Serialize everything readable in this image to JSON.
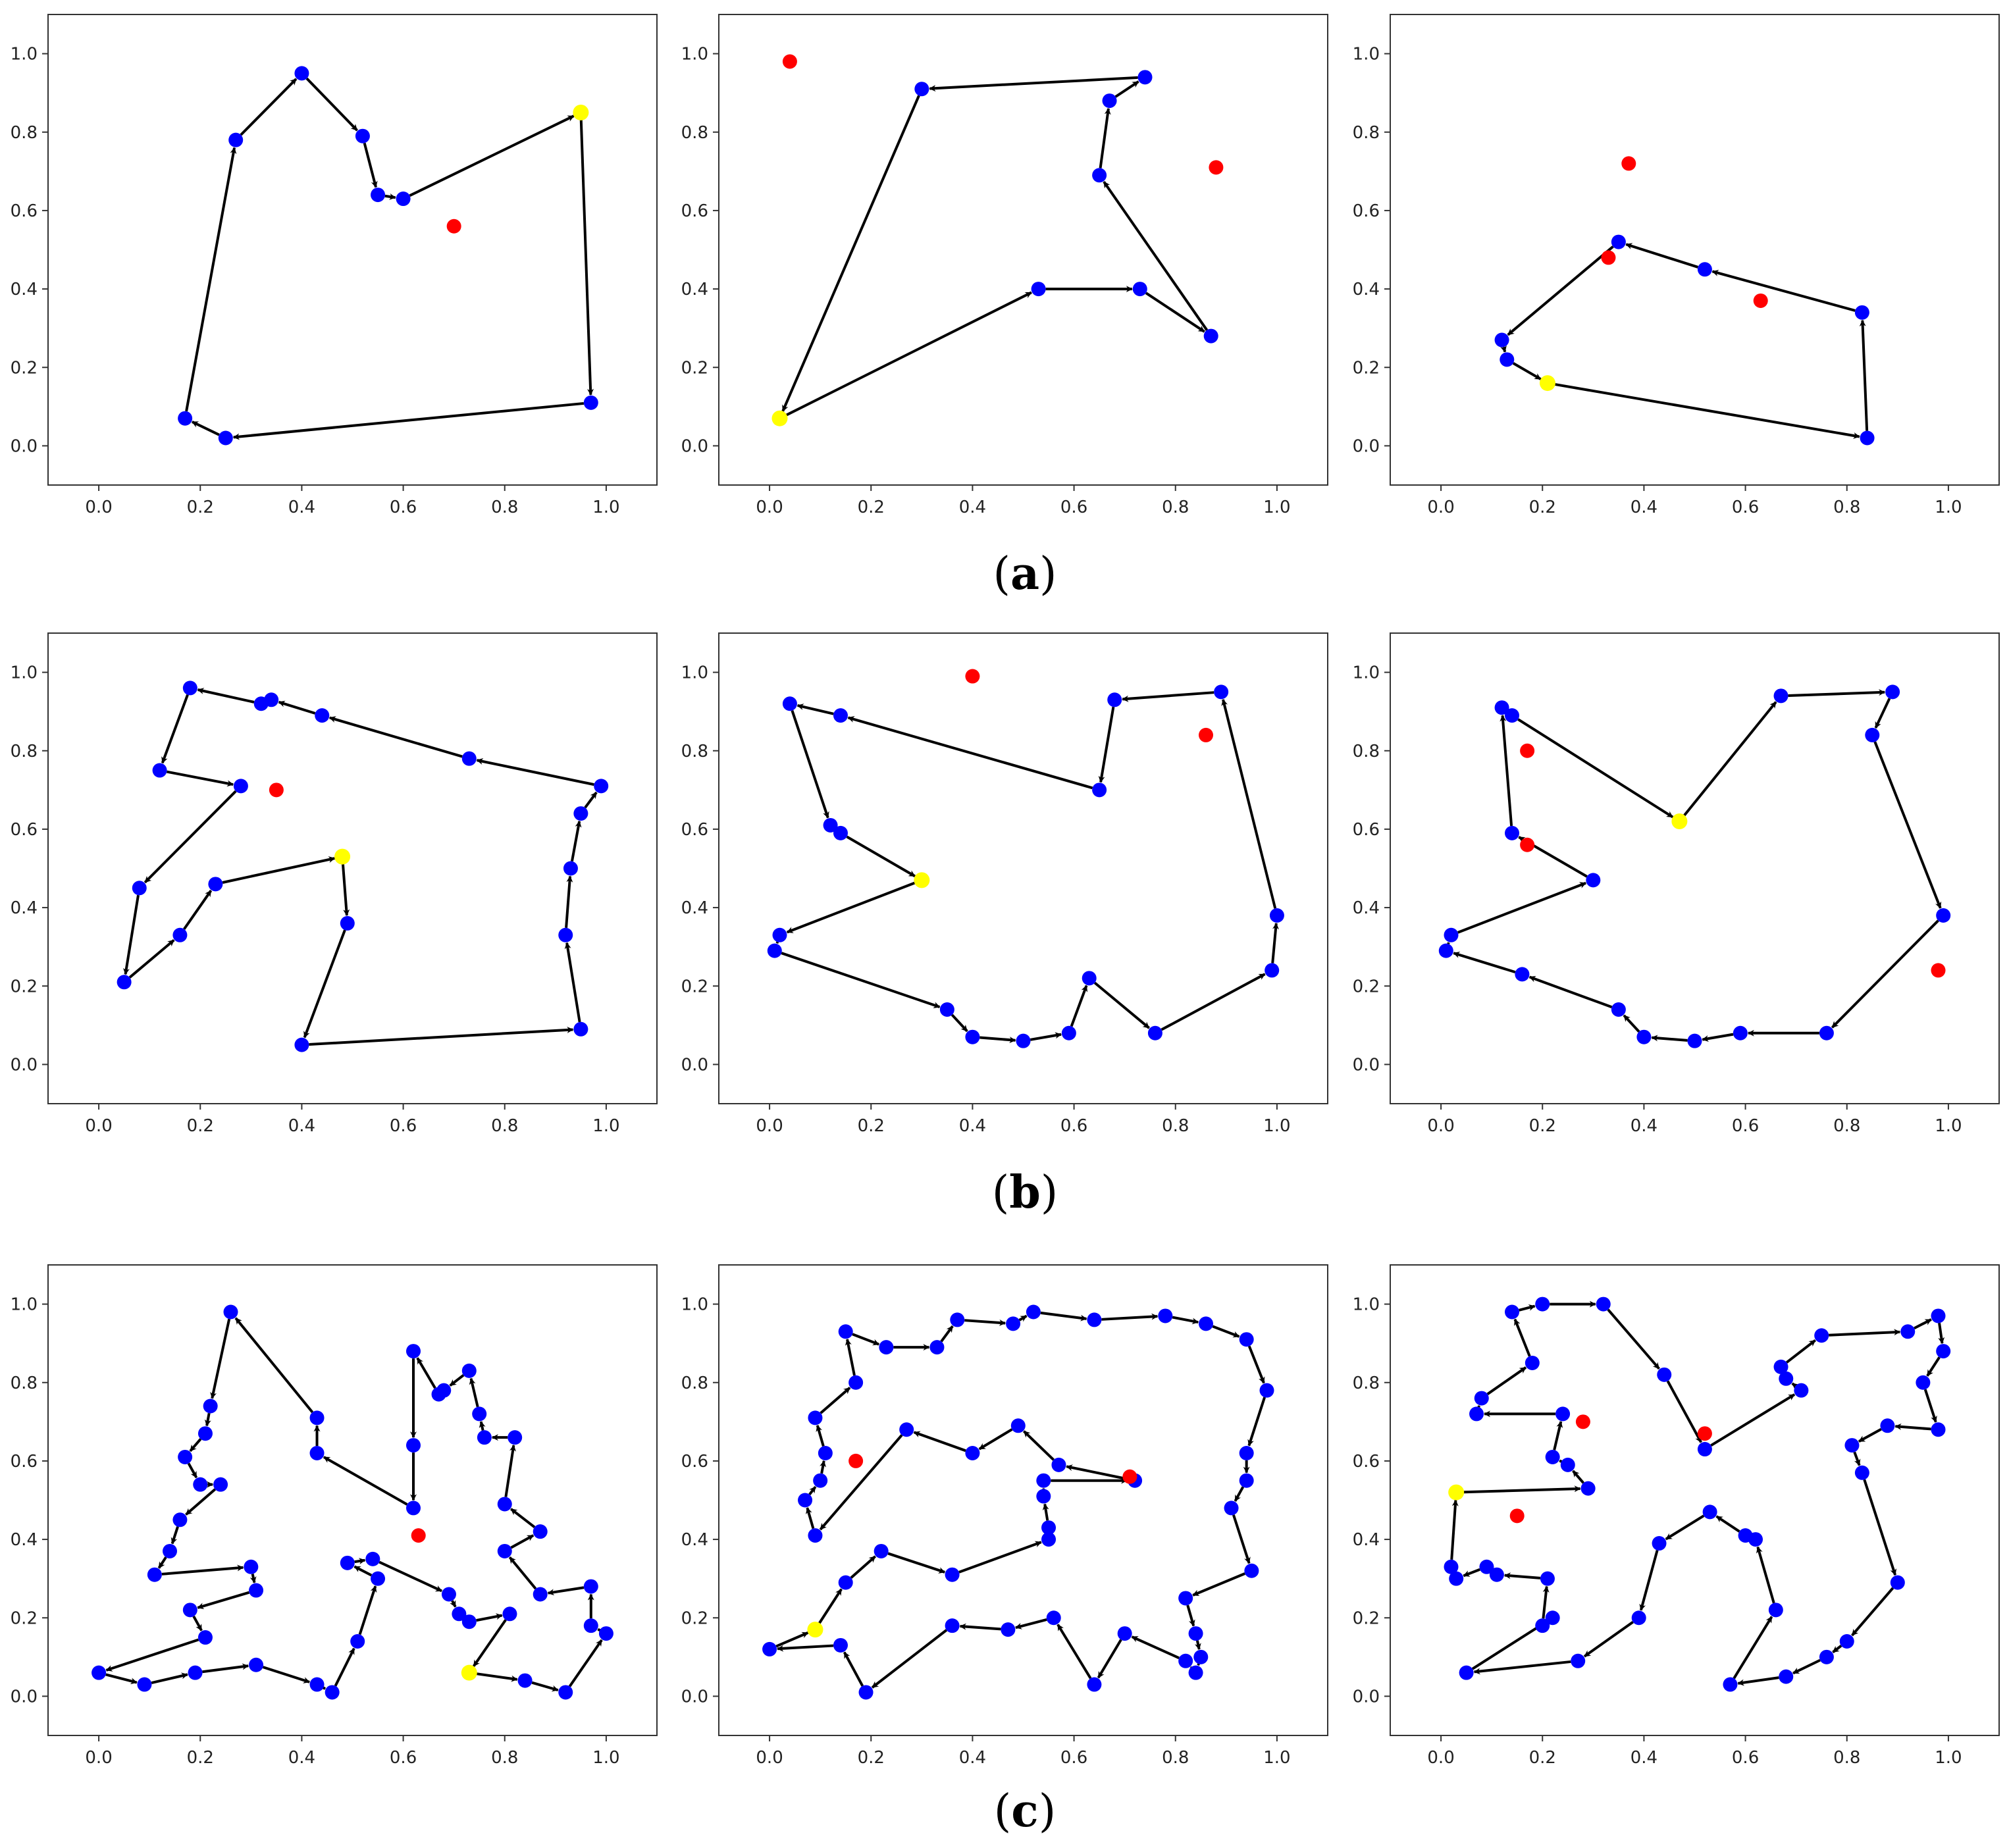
{
  "figure": {
    "row_labels": [
      "a",
      "b",
      "c"
    ]
  },
  "style": {
    "node_color": "#0000ff",
    "start_color": "#ffff00",
    "outlier_color": "#ff0000",
    "edge_color": "#000000",
    "frame_color": "#333333"
  },
  "chart_data": [
    {
      "type": "scatter",
      "row": "a",
      "col": 0,
      "xlim": [
        -0.1,
        1.1
      ],
      "ylim": [
        -0.1,
        1.1
      ],
      "xticks": [
        "0.0",
        "0.2",
        "0.4",
        "0.6",
        "0.8",
        "1.0"
      ],
      "yticks": [
        "0.0",
        "0.2",
        "0.4",
        "0.6",
        "0.8",
        "1.0"
      ],
      "tour": [
        [
          0.95,
          0.85
        ],
        [
          0.97,
          0.11
        ],
        [
          0.25,
          0.02
        ],
        [
          0.17,
          0.07
        ],
        [
          0.27,
          0.78
        ],
        [
          0.4,
          0.95
        ],
        [
          0.52,
          0.79
        ],
        [
          0.55,
          0.64
        ],
        [
          0.6,
          0.63
        ]
      ],
      "start": [
        0.95,
        0.85
      ],
      "outliers": [
        [
          0.7,
          0.56
        ]
      ]
    },
    {
      "type": "scatter",
      "row": "a",
      "col": 1,
      "xlim": [
        -0.1,
        1.1
      ],
      "ylim": [
        -0.1,
        1.1
      ],
      "xticks": [
        "0.0",
        "0.2",
        "0.4",
        "0.6",
        "0.8",
        "1.0"
      ],
      "yticks": [
        "0.0",
        "0.2",
        "0.4",
        "0.6",
        "0.8",
        "1.0"
      ],
      "tour": [
        [
          0.02,
          0.07
        ],
        [
          0.53,
          0.4
        ],
        [
          0.73,
          0.4
        ],
        [
          0.87,
          0.28
        ],
        [
          0.65,
          0.69
        ],
        [
          0.67,
          0.88
        ],
        [
          0.74,
          0.94
        ],
        [
          0.3,
          0.91
        ]
      ],
      "start": [
        0.02,
        0.07
      ],
      "outliers": [
        [
          0.04,
          0.98
        ],
        [
          0.88,
          0.71
        ]
      ]
    },
    {
      "type": "scatter",
      "row": "a",
      "col": 2,
      "xlim": [
        -0.1,
        1.1
      ],
      "ylim": [
        -0.1,
        1.1
      ],
      "xticks": [
        "0.0",
        "0.2",
        "0.4",
        "0.6",
        "0.8",
        "1.0"
      ],
      "yticks": [
        "0.0",
        "0.2",
        "0.4",
        "0.6",
        "0.8",
        "1.0"
      ],
      "tour": [
        [
          0.21,
          0.16
        ],
        [
          0.84,
          0.02
        ],
        [
          0.83,
          0.34
        ],
        [
          0.52,
          0.45
        ],
        [
          0.35,
          0.52
        ],
        [
          0.12,
          0.27
        ],
        [
          0.13,
          0.22
        ]
      ],
      "start": [
        0.21,
        0.16
      ],
      "outliers": [
        [
          0.37,
          0.72
        ],
        [
          0.33,
          0.48
        ],
        [
          0.63,
          0.37
        ]
      ]
    },
    {
      "type": "scatter",
      "row": "b",
      "col": 0,
      "xlim": [
        -0.1,
        1.1
      ],
      "ylim": [
        -0.1,
        1.1
      ],
      "xticks": [
        "0.0",
        "0.2",
        "0.4",
        "0.6",
        "0.8",
        "1.0"
      ],
      "yticks": [
        "0.0",
        "0.2",
        "0.4",
        "0.6",
        "0.8",
        "1.0"
      ],
      "tour": [
        [
          0.48,
          0.53
        ],
        [
          0.49,
          0.36
        ],
        [
          0.4,
          0.05
        ],
        [
          0.95,
          0.09
        ],
        [
          0.92,
          0.33
        ],
        [
          0.93,
          0.5
        ],
        [
          0.95,
          0.64
        ],
        [
          0.99,
          0.71
        ],
        [
          0.73,
          0.78
        ],
        [
          0.44,
          0.89
        ],
        [
          0.34,
          0.93
        ],
        [
          0.32,
          0.92
        ],
        [
          0.18,
          0.96
        ],
        [
          0.12,
          0.75
        ],
        [
          0.28,
          0.71
        ],
        [
          0.08,
          0.45
        ],
        [
          0.05,
          0.21
        ],
        [
          0.16,
          0.33
        ],
        [
          0.23,
          0.46
        ]
      ],
      "start": [
        0.48,
        0.53
      ],
      "outliers": [
        [
          0.35,
          0.7
        ]
      ]
    },
    {
      "type": "scatter",
      "row": "b",
      "col": 1,
      "xlim": [
        -0.1,
        1.1
      ],
      "ylim": [
        -0.1,
        1.1
      ],
      "xticks": [
        "0.0",
        "0.2",
        "0.4",
        "0.6",
        "0.8",
        "1.0"
      ],
      "yticks": [
        "0.0",
        "0.2",
        "0.4",
        "0.6",
        "0.8",
        "1.0"
      ],
      "tour": [
        [
          0.3,
          0.47
        ],
        [
          0.02,
          0.33
        ],
        [
          0.01,
          0.29
        ],
        [
          0.35,
          0.14
        ],
        [
          0.4,
          0.07
        ],
        [
          0.5,
          0.06
        ],
        [
          0.59,
          0.08
        ],
        [
          0.63,
          0.22
        ],
        [
          0.76,
          0.08
        ],
        [
          0.99,
          0.24
        ],
        [
          1.0,
          0.38
        ],
        [
          0.89,
          0.95
        ],
        [
          0.68,
          0.93
        ],
        [
          0.65,
          0.7
        ],
        [
          0.14,
          0.89
        ],
        [
          0.04,
          0.92
        ],
        [
          0.12,
          0.61
        ],
        [
          0.14,
          0.59
        ]
      ],
      "start": [
        0.3,
        0.47
      ],
      "outliers": [
        [
          0.4,
          0.99
        ],
        [
          0.86,
          0.84
        ]
      ]
    },
    {
      "type": "scatter",
      "row": "b",
      "col": 2,
      "xlim": [
        -0.1,
        1.1
      ],
      "ylim": [
        -0.1,
        1.1
      ],
      "xticks": [
        "0.0",
        "0.2",
        "0.4",
        "0.6",
        "0.8",
        "1.0"
      ],
      "yticks": [
        "0.0",
        "0.2",
        "0.4",
        "0.6",
        "0.8",
        "1.0"
      ],
      "tour": [
        [
          0.47,
          0.62
        ],
        [
          0.67,
          0.94
        ],
        [
          0.89,
          0.95
        ],
        [
          0.85,
          0.84
        ],
        [
          0.99,
          0.38
        ],
        [
          0.76,
          0.08
        ],
        [
          0.59,
          0.08
        ],
        [
          0.5,
          0.06
        ],
        [
          0.4,
          0.07
        ],
        [
          0.35,
          0.14
        ],
        [
          0.16,
          0.23
        ],
        [
          0.01,
          0.29
        ],
        [
          0.02,
          0.33
        ],
        [
          0.3,
          0.47
        ],
        [
          0.14,
          0.59
        ],
        [
          0.12,
          0.91
        ],
        [
          0.14,
          0.89
        ]
      ],
      "start": [
        0.47,
        0.62
      ],
      "outliers": [
        [
          0.17,
          0.8
        ],
        [
          0.17,
          0.56
        ],
        [
          0.98,
          0.24
        ]
      ]
    },
    {
      "type": "scatter",
      "row": "c",
      "col": 0,
      "xlim": [
        -0.1,
        1.1
      ],
      "ylim": [
        -0.1,
        1.1
      ],
      "xticks": [
        "0.0",
        "0.2",
        "0.4",
        "0.6",
        "0.8",
        "1.0"
      ],
      "yticks": [
        "0.0",
        "0.2",
        "0.4",
        "0.6",
        "0.8",
        "1.0"
      ],
      "tour": [
        [
          0.73,
          0.06
        ],
        [
          0.84,
          0.04
        ],
        [
          0.92,
          0.01
        ],
        [
          1.0,
          0.16
        ],
        [
          0.97,
          0.18
        ],
        [
          0.97,
          0.28
        ],
        [
          0.87,
          0.26
        ],
        [
          0.8,
          0.37
        ],
        [
          0.87,
          0.42
        ],
        [
          0.8,
          0.49
        ],
        [
          0.82,
          0.66
        ],
        [
          0.76,
          0.66
        ],
        [
          0.75,
          0.72
        ],
        [
          0.73,
          0.83
        ],
        [
          0.68,
          0.78
        ],
        [
          0.67,
          0.77
        ],
        [
          0.62,
          0.88
        ],
        [
          0.62,
          0.64
        ],
        [
          0.62,
          0.48
        ],
        [
          0.43,
          0.62
        ],
        [
          0.43,
          0.71
        ],
        [
          0.26,
          0.98
        ],
        [
          0.22,
          0.74
        ],
        [
          0.21,
          0.67
        ],
        [
          0.17,
          0.61
        ],
        [
          0.2,
          0.54
        ],
        [
          0.24,
          0.54
        ],
        [
          0.16,
          0.45
        ],
        [
          0.14,
          0.37
        ],
        [
          0.11,
          0.31
        ],
        [
          0.3,
          0.33
        ],
        [
          0.31,
          0.27
        ],
        [
          0.18,
          0.22
        ],
        [
          0.21,
          0.15
        ],
        [
          0.0,
          0.06
        ],
        [
          0.09,
          0.03
        ],
        [
          0.19,
          0.06
        ],
        [
          0.31,
          0.08
        ],
        [
          0.43,
          0.03
        ],
        [
          0.46,
          0.01
        ],
        [
          0.51,
          0.14
        ],
        [
          0.55,
          0.3
        ],
        [
          0.49,
          0.34
        ],
        [
          0.54,
          0.35
        ],
        [
          0.69,
          0.26
        ],
        [
          0.71,
          0.21
        ],
        [
          0.73,
          0.19
        ],
        [
          0.81,
          0.21
        ]
      ],
      "start": [
        0.73,
        0.06
      ],
      "outliers": [
        [
          0.63,
          0.41
        ]
      ]
    },
    {
      "type": "scatter",
      "row": "c",
      "col": 1,
      "xlim": [
        -0.1,
        1.1
      ],
      "ylim": [
        -0.1,
        1.1
      ],
      "xticks": [
        "0.0",
        "0.2",
        "0.4",
        "0.6",
        "0.8",
        "1.0"
      ],
      "yticks": [
        "0.0",
        "0.2",
        "0.4",
        "0.6",
        "0.8",
        "1.0"
      ],
      "tour": [
        [
          0.09,
          0.17
        ],
        [
          0.15,
          0.29
        ],
        [
          0.22,
          0.37
        ],
        [
          0.36,
          0.31
        ],
        [
          0.55,
          0.4
        ],
        [
          0.55,
          0.43
        ],
        [
          0.54,
          0.51
        ],
        [
          0.54,
          0.55
        ],
        [
          0.72,
          0.55
        ],
        [
          0.57,
          0.59
        ],
        [
          0.49,
          0.69
        ],
        [
          0.4,
          0.62
        ],
        [
          0.27,
          0.68
        ],
        [
          0.09,
          0.41
        ],
        [
          0.07,
          0.5
        ],
        [
          0.1,
          0.55
        ],
        [
          0.11,
          0.62
        ],
        [
          0.09,
          0.71
        ],
        [
          0.17,
          0.8
        ],
        [
          0.15,
          0.93
        ],
        [
          0.23,
          0.89
        ],
        [
          0.33,
          0.89
        ],
        [
          0.37,
          0.96
        ],
        [
          0.48,
          0.95
        ],
        [
          0.52,
          0.98
        ],
        [
          0.64,
          0.96
        ],
        [
          0.78,
          0.97
        ],
        [
          0.86,
          0.95
        ],
        [
          0.94,
          0.91
        ],
        [
          0.98,
          0.78
        ],
        [
          0.94,
          0.62
        ],
        [
          0.94,
          0.55
        ],
        [
          0.91,
          0.48
        ],
        [
          0.95,
          0.32
        ],
        [
          0.82,
          0.25
        ],
        [
          0.84,
          0.16
        ],
        [
          0.85,
          0.1
        ],
        [
          0.84,
          0.06
        ],
        [
          0.82,
          0.09
        ],
        [
          0.7,
          0.16
        ],
        [
          0.64,
          0.03
        ],
        [
          0.56,
          0.2
        ],
        [
          0.47,
          0.17
        ],
        [
          0.36,
          0.18
        ],
        [
          0.19,
          0.01
        ],
        [
          0.14,
          0.13
        ],
        [
          0.0,
          0.12
        ]
      ],
      "start": [
        0.09,
        0.17
      ],
      "outliers": [
        [
          0.17,
          0.6
        ],
        [
          0.71,
          0.56
        ]
      ]
    },
    {
      "type": "scatter",
      "row": "c",
      "col": 2,
      "xlim": [
        -0.1,
        1.1
      ],
      "ylim": [
        -0.1,
        1.1
      ],
      "xticks": [
        "0.0",
        "0.2",
        "0.4",
        "0.6",
        "0.8",
        "1.0"
      ],
      "yticks": [
        "0.0",
        "0.2",
        "0.4",
        "0.6",
        "0.8",
        "1.0"
      ],
      "tour": [
        [
          0.03,
          0.52
        ],
        [
          0.29,
          0.53
        ],
        [
          0.25,
          0.59
        ],
        [
          0.22,
          0.61
        ],
        [
          0.24,
          0.72
        ],
        [
          0.07,
          0.72
        ],
        [
          0.08,
          0.76
        ],
        [
          0.18,
          0.85
        ],
        [
          0.14,
          0.98
        ],
        [
          0.2,
          1.0
        ],
        [
          0.32,
          1.0
        ],
        [
          0.44,
          0.82
        ],
        [
          0.52,
          0.63
        ],
        [
          0.71,
          0.78
        ],
        [
          0.68,
          0.81
        ],
        [
          0.67,
          0.84
        ],
        [
          0.75,
          0.92
        ],
        [
          0.92,
          0.93
        ],
        [
          0.98,
          0.97
        ],
        [
          0.99,
          0.88
        ],
        [
          0.95,
          0.8
        ],
        [
          0.98,
          0.68
        ],
        [
          0.88,
          0.69
        ],
        [
          0.81,
          0.64
        ],
        [
          0.83,
          0.57
        ],
        [
          0.9,
          0.29
        ],
        [
          0.8,
          0.14
        ],
        [
          0.76,
          0.1
        ],
        [
          0.68,
          0.05
        ],
        [
          0.57,
          0.03
        ],
        [
          0.66,
          0.22
        ],
        [
          0.62,
          0.4
        ],
        [
          0.6,
          0.41
        ],
        [
          0.53,
          0.47
        ],
        [
          0.43,
          0.39
        ],
        [
          0.39,
          0.2
        ],
        [
          0.27,
          0.09
        ],
        [
          0.05,
          0.06
        ],
        [
          0.22,
          0.2
        ],
        [
          0.2,
          0.18
        ],
        [
          0.21,
          0.3
        ],
        [
          0.11,
          0.31
        ],
        [
          0.09,
          0.33
        ],
        [
          0.03,
          0.3
        ],
        [
          0.02,
          0.33
        ]
      ],
      "start": [
        0.03,
        0.52
      ],
      "outliers": [
        [
          0.28,
          0.7
        ],
        [
          0.52,
          0.67
        ],
        [
          0.15,
          0.46
        ]
      ]
    }
  ]
}
